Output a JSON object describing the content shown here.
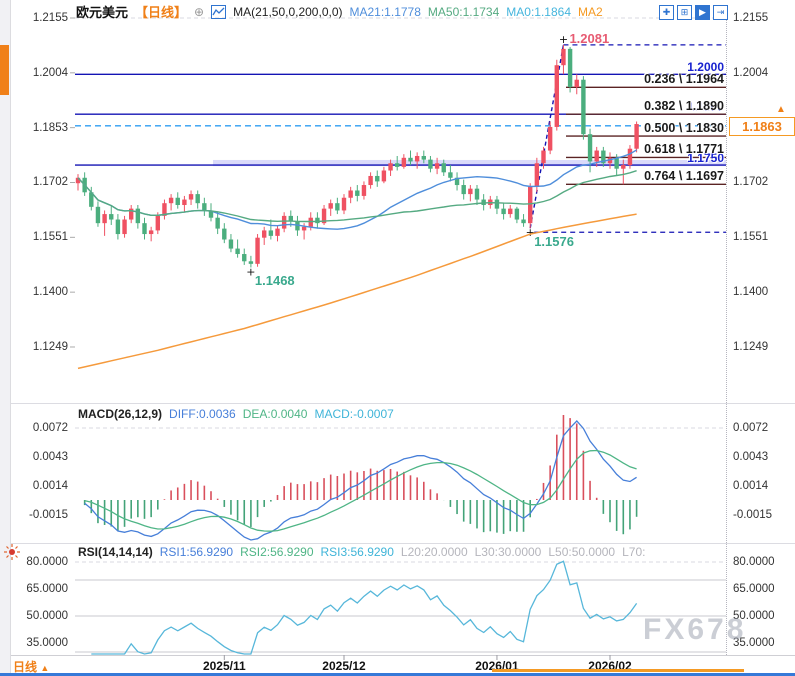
{
  "header": {
    "symbol": "欧元美元",
    "period": "【日线】",
    "ma_settings": "MA(21,50,0,200,0,0)",
    "ma21": "MA21:1.1778",
    "ma50": "MA50:1.1734",
    "ma0": "MA0:1.1864",
    "ma2": "MA2"
  },
  "toolbar": {
    "icons": [
      {
        "name": "pan-crosshair-icon",
        "glyph": "✚",
        "filled": false
      },
      {
        "name": "axis-scale-icon",
        "glyph": "⊞",
        "filled": false
      },
      {
        "name": "auto-scroll-icon",
        "glyph": "▶",
        "filled": true
      },
      {
        "name": "exit-chart-icon",
        "glyph": "⇥",
        "filled": false
      }
    ]
  },
  "colors": {
    "bull": "#ef5162",
    "bear": "#4bae7e",
    "ma21": "#4f8edb",
    "ma50": "#55aa82",
    "ma200": "#f59a3c",
    "navy": "#1414b4",
    "fib_line": "#5a2323",
    "current_dash": "#2e9df2",
    "label_blue": "#1822cf",
    "pivot_low": "#3aa98d",
    "pivot_high": "#e75b72",
    "tag_orange": "#f08018",
    "diff": "#477fd9",
    "dea": "#4fb586",
    "hist_pos": "#d94f5c",
    "hist_neg": "#43a378",
    "rsi": "#57b7da",
    "band_fill": "rgba(150,150,240,0.35)"
  },
  "main_chart": {
    "axis": [
      {
        "t": "1.2155",
        "p": 1.2155
      },
      {
        "t": "1.2004",
        "p": 1.2004
      },
      {
        "t": "1.1853",
        "p": 1.1853
      },
      {
        "t": "1.1702",
        "p": 1.1702
      },
      {
        "t": "1.1551",
        "p": 1.1551
      },
      {
        "t": "1.1400",
        "p": 1.14
      },
      {
        "t": "1.1249",
        "p": 1.1249
      }
    ],
    "fib_levels": [
      {
        "label": "0.236 \\ 1.1964",
        "price": 1.1964
      },
      {
        "label": "0.382 \\ 1.1890",
        "price": 1.189
      },
      {
        "label": "0.500 \\ 1.1830",
        "price": 1.183
      },
      {
        "label": "0.618 \\ 1.1771",
        "price": 1.1771
      },
      {
        "label": "0.764 \\ 1.1697",
        "price": 1.1697
      }
    ],
    "levels_blue": [
      {
        "label": "1.2000",
        "price": 1.2
      },
      {
        "label": "1.1890",
        "price": 1.189
      },
      {
        "label": "1.1750",
        "price": 1.175
      }
    ],
    "band": {
      "top_price": 1.1764,
      "bottom_price": 1.1747,
      "from_x": 213
    },
    "price_tag": {
      "text": "1.1863",
      "price": 1.1858
    }
  },
  "macd": {
    "title": "MACD(26,12,9)",
    "diff": "DIFF:0.0036",
    "dea": "DEA:0.0040",
    "macd": "MACD:-0.0007",
    "axis": [
      {
        "t": "0.0072",
        "v": 0.0072
      },
      {
        "t": "0.0043",
        "v": 0.0043
      },
      {
        "t": "0.0014",
        "v": 0.0014
      },
      {
        "t": "-0.0015",
        "v": -0.0015
      }
    ]
  },
  "rsi": {
    "title": "RSI(14,14,14)",
    "r1": "RSI1:56.9290",
    "r2": "RSI2:56.9290",
    "r3": "RSI3:56.9290",
    "l20": "L20:20.0000",
    "l30": "L30:30.0000",
    "l50": "L50:50.0000",
    "l70": "L70:",
    "axis": [
      {
        "t": "80.0000",
        "v": 80
      },
      {
        "t": "65.0000",
        "v": 65
      },
      {
        "t": "50.0000",
        "v": 50
      },
      {
        "t": "35.0000",
        "v": 35
      }
    ],
    "gridline_values": [
      70,
      50,
      30
    ],
    "dashed_gridline_value": 80
  },
  "bottom_bar": {
    "period": "日线"
  },
  "watermark": {
    "text": "FX678"
  },
  "chart_data": {
    "type": "candlestick",
    "symbol": "EUR/USD 欧元美元",
    "interval": "daily 日线",
    "ylim_main": [
      1.1103,
      1.2155
    ],
    "ylim_macd": [
      -0.004,
      0.0085
    ],
    "ylim_rsi": [
      28,
      83
    ],
    "x_ticks": [
      {
        "label": "2025/11",
        "index": 22
      },
      {
        "label": "2025/12",
        "index": 40
      },
      {
        "label": "2026/01",
        "index": 63
      },
      {
        "label": "2026/02",
        "index": 80
      }
    ],
    "ma_periods": [
      21,
      50,
      200
    ],
    "macd_params": [
      26,
      12,
      9
    ],
    "rsi_params": [
      14,
      14,
      14
    ],
    "pivots": [
      {
        "label": "1.2081",
        "index": 73,
        "price": 1.2081,
        "kind": "high"
      },
      {
        "label": "1.1468",
        "index": 26,
        "price": 1.1468,
        "kind": "low"
      },
      {
        "label": "1.1576",
        "index": 68,
        "price": 1.1576,
        "kind": "low"
      }
    ],
    "dashed_lines": {
      "peak": {
        "price": 1.2081,
        "from_index": 73
      },
      "low": {
        "price": 1.1576,
        "from_index": 68
      },
      "current": {
        "price": 1.1858
      },
      "trend": {
        "from": {
          "index": 68,
          "price": 1.1576
        },
        "to": {
          "index": 73,
          "price": 1.2081
        }
      }
    },
    "ma200_anchors": [
      [
        0,
        1.119
      ],
      [
        12,
        1.124
      ],
      [
        25,
        1.13
      ],
      [
        38,
        1.137
      ],
      [
        50,
        1.144
      ],
      [
        60,
        1.1505
      ],
      [
        68,
        1.156
      ],
      [
        74,
        1.1582
      ],
      [
        80,
        1.1602
      ],
      [
        84,
        1.1615
      ]
    ],
    "candles": [
      [
        1.17,
        1.1725,
        1.168,
        1.1715
      ],
      [
        1.1715,
        1.173,
        1.1665,
        1.1675
      ],
      [
        1.1675,
        1.169,
        1.1625,
        1.1635
      ],
      [
        1.1635,
        1.165,
        1.158,
        1.159
      ],
      [
        1.159,
        1.1625,
        1.1555,
        1.1615
      ],
      [
        1.1615,
        1.164,
        1.1585,
        1.16
      ],
      [
        1.16,
        1.1615,
        1.1545,
        1.156
      ],
      [
        1.156,
        1.161,
        1.155,
        1.16
      ],
      [
        1.16,
        1.164,
        1.159,
        1.163
      ],
      [
        1.163,
        1.164,
        1.1575,
        1.159
      ],
      [
        1.159,
        1.1605,
        1.1545,
        1.156
      ],
      [
        1.156,
        1.158,
        1.154,
        1.157
      ],
      [
        1.157,
        1.162,
        1.156,
        1.161
      ],
      [
        1.161,
        1.1655,
        1.16,
        1.1645
      ],
      [
        1.1645,
        1.167,
        1.1625,
        1.166
      ],
      [
        1.166,
        1.1675,
        1.163,
        1.164
      ],
      [
        1.164,
        1.1665,
        1.162,
        1.1655
      ],
      [
        1.1655,
        1.168,
        1.164,
        1.167
      ],
      [
        1.167,
        1.168,
        1.163,
        1.1645
      ],
      [
        1.1645,
        1.166,
        1.161,
        1.1625
      ],
      [
        1.1625,
        1.1645,
        1.1595,
        1.1605
      ],
      [
        1.1605,
        1.162,
        1.156,
        1.1575
      ],
      [
        1.1575,
        1.159,
        1.1535,
        1.1545
      ],
      [
        1.1545,
        1.156,
        1.151,
        1.152
      ],
      [
        1.152,
        1.1545,
        1.1495,
        1.1505
      ],
      [
        1.1505,
        1.152,
        1.1475,
        1.1485
      ],
      [
        1.1485,
        1.15,
        1.1468,
        1.1478
      ],
      [
        1.1478,
        1.156,
        1.147,
        1.155
      ],
      [
        1.155,
        1.158,
        1.153,
        1.157
      ],
      [
        1.157,
        1.16,
        1.1545,
        1.1555
      ],
      [
        1.1555,
        1.1585,
        1.154,
        1.1575
      ],
      [
        1.1575,
        1.162,
        1.1565,
        1.161
      ],
      [
        1.161,
        1.1625,
        1.158,
        1.1595
      ],
      [
        1.1595,
        1.161,
        1.1555,
        1.157
      ],
      [
        1.157,
        1.159,
        1.1545,
        1.158
      ],
      [
        1.158,
        1.162,
        1.157,
        1.1605
      ],
      [
        1.1605,
        1.162,
        1.1575,
        1.159
      ],
      [
        1.159,
        1.164,
        1.1585,
        1.163
      ],
      [
        1.163,
        1.1655,
        1.161,
        1.1645
      ],
      [
        1.1645,
        1.166,
        1.1615,
        1.1625
      ],
      [
        1.1625,
        1.167,
        1.1615,
        1.166
      ],
      [
        1.166,
        1.169,
        1.1645,
        1.168
      ],
      [
        1.168,
        1.1695,
        1.165,
        1.1665
      ],
      [
        1.1665,
        1.1705,
        1.1655,
        1.1695
      ],
      [
        1.1695,
        1.173,
        1.1685,
        1.172
      ],
      [
        1.172,
        1.1735,
        1.169,
        1.1705
      ],
      [
        1.1705,
        1.1745,
        1.17,
        1.1735
      ],
      [
        1.1735,
        1.1765,
        1.172,
        1.1755
      ],
      [
        1.1755,
        1.1775,
        1.1735,
        1.1745
      ],
      [
        1.1745,
        1.178,
        1.174,
        1.177
      ],
      [
        1.177,
        1.179,
        1.175,
        1.176
      ],
      [
        1.176,
        1.1785,
        1.174,
        1.1775
      ],
      [
        1.1775,
        1.179,
        1.1755,
        1.1765
      ],
      [
        1.1765,
        1.1775,
        1.173,
        1.174
      ],
      [
        1.174,
        1.177,
        1.1725,
        1.1755
      ],
      [
        1.1755,
        1.1765,
        1.172,
        1.173
      ],
      [
        1.173,
        1.175,
        1.1705,
        1.1715
      ],
      [
        1.1715,
        1.173,
        1.168,
        1.1695
      ],
      [
        1.1695,
        1.171,
        1.1655,
        1.167
      ],
      [
        1.167,
        1.1695,
        1.165,
        1.1685
      ],
      [
        1.1685,
        1.1695,
        1.164,
        1.1655
      ],
      [
        1.1655,
        1.167,
        1.1625,
        1.164
      ],
      [
        1.164,
        1.1665,
        1.163,
        1.1655
      ],
      [
        1.1655,
        1.1665,
        1.1615,
        1.163
      ],
      [
        1.163,
        1.1645,
        1.16,
        1.1615
      ],
      [
        1.1615,
        1.164,
        1.1605,
        1.163
      ],
      [
        1.163,
        1.1635,
        1.159,
        1.16
      ],
      [
        1.16,
        1.1615,
        1.158,
        1.159
      ],
      [
        1.159,
        1.17,
        1.1576,
        1.169
      ],
      [
        1.169,
        1.177,
        1.1675,
        1.1755
      ],
      [
        1.1755,
        1.18,
        1.174,
        1.179
      ],
      [
        1.179,
        1.187,
        1.178,
        1.1855
      ],
      [
        1.1855,
        1.204,
        1.1845,
        1.2025
      ],
      [
        1.2025,
        1.2081,
        1.2,
        1.207
      ],
      [
        1.207,
        1.2075,
        1.195,
        1.1965
      ],
      [
        1.1965,
        1.2,
        1.1945,
        1.1985
      ],
      [
        1.1985,
        1.1995,
        1.182,
        1.1835
      ],
      [
        1.1835,
        1.185,
        1.173,
        1.176
      ],
      [
        1.176,
        1.18,
        1.1745,
        1.179
      ],
      [
        1.179,
        1.18,
        1.1745,
        1.1755
      ],
      [
        1.1755,
        1.1785,
        1.174,
        1.177
      ],
      [
        1.177,
        1.178,
        1.172,
        1.174
      ],
      [
        1.174,
        1.1765,
        1.1697,
        1.175
      ],
      [
        1.175,
        1.1805,
        1.174,
        1.1795
      ],
      [
        1.1795,
        1.187,
        1.1785,
        1.1863
      ]
    ]
  }
}
